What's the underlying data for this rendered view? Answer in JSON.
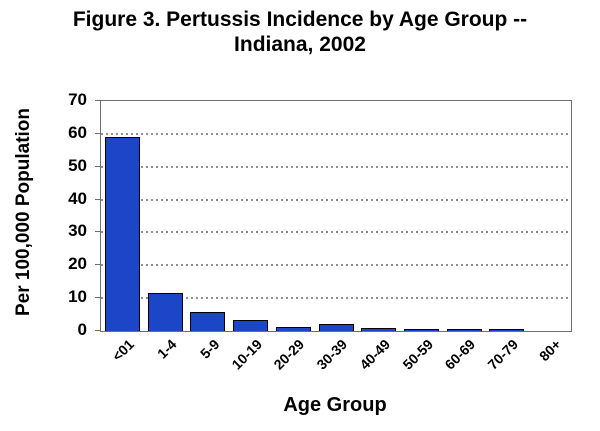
{
  "figure": {
    "title_line1": "Figure 3. Pertussis Incidence by Age Group --",
    "title_line2": "Indiana, 2002"
  },
  "chart_data": {
    "type": "bar",
    "title": "Figure 3. Pertussis Incidence by Age Group -- Indiana, 2002",
    "categories": [
      "<01",
      "1-4",
      "5-9",
      "10-19",
      "20-29",
      "30-39",
      "40-49",
      "50-59",
      "60-69",
      "70-79",
      "80+"
    ],
    "values": [
      59,
      11.5,
      5.8,
      3.3,
      1.2,
      2.0,
      0.9,
      0.5,
      0.5,
      0.6,
      0
    ],
    "xlabel": "Age Group",
    "ylabel": "Per 100,000 Population",
    "ylim": [
      0,
      70
    ],
    "yticks": [
      0,
      10,
      20,
      30,
      40,
      50,
      60,
      70
    ],
    "grid": "horizontal-dotted",
    "legend": "none",
    "colors": {
      "bar_fill": "#1b46c8",
      "bar_border": "#000000",
      "gridline": "#8f8f8f",
      "plot_border": "#6e6e6e",
      "text": "#000000",
      "background": "#ffffff"
    }
  }
}
